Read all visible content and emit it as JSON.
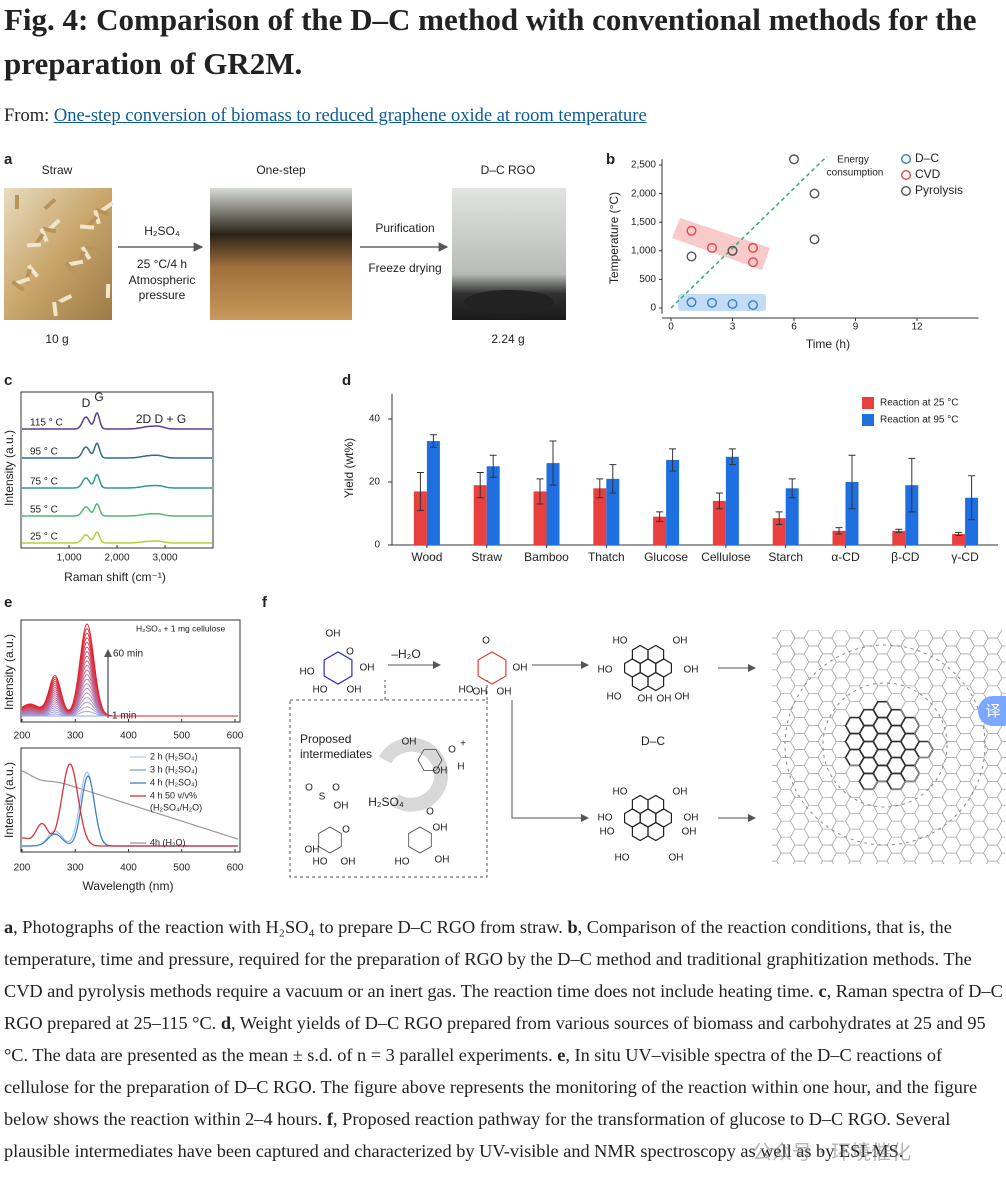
{
  "header": {
    "title": "Fig. 4: Comparison of the D–C method with conventional methods for the preparation of GR2M.",
    "from_label": "From:",
    "from_link": "One-step conversion of biomass to reduced graphene oxide at room temperature"
  },
  "figure": {
    "panel_a": {
      "letter": "a",
      "photo_labels": [
        "Straw",
        "One-step",
        "D–C RGO"
      ],
      "masses": [
        "10 g",
        "2.24 g"
      ],
      "step1": [
        "H₂SO₄",
        "25 °C/4 h",
        "Atmospheric",
        "pressure"
      ],
      "step2": [
        "Purification",
        "Freeze drying"
      ]
    },
    "panel_b": {
      "letter": "b",
      "type": "scatter",
      "xlabel": "Time (h)",
      "ylabel": "Temperature (°C)",
      "xlim": [
        0,
        15
      ],
      "ylim": [
        -100,
        2600
      ],
      "xticks": [
        0,
        3,
        6,
        9,
        12
      ],
      "yticks": [
        0,
        500,
        {
          "value": 1000,
          "label": "1,000"
        },
        {
          "value": 1500,
          "label": "1,500"
        },
        {
          "value": 2000,
          "label": "2,000"
        },
        {
          "value": 2500,
          "label": "2,500"
        }
      ],
      "annotation": [
        "Energy",
        "consumption"
      ],
      "legend_position": "upper right",
      "series": [
        {
          "name": "D–C",
          "color": "#3a7dc9",
          "x": [
            1,
            2,
            3,
            4
          ],
          "values": [
            100,
            90,
            70,
            50
          ]
        },
        {
          "name": "CVD",
          "color": "#e0474c",
          "x": [
            1,
            2,
            3,
            4,
            4
          ],
          "values": [
            1350,
            1050,
            1000,
            1050,
            800
          ]
        },
        {
          "name": "Pyrolysis",
          "color": "#555555",
          "x": [
            1,
            3,
            6,
            7,
            7
          ],
          "values": [
            900,
            1000,
            2600,
            2000,
            1200
          ]
        }
      ]
    },
    "panel_c": {
      "letter": "c",
      "xlabel": "Raman shift (cm⁻¹)",
      "ylabel": "Intensity (a.u.)",
      "xlim": [
        0,
        4000
      ],
      "xticks": [
        {
          "value": 1000,
          "label": "1,000"
        },
        {
          "value": 2000,
          "label": "2,000"
        },
        {
          "value": 3000,
          "label": "3,000"
        }
      ],
      "peaks": [
        "D",
        "G",
        "2D D + G"
      ],
      "temperatures": [
        "115 ° C",
        "95 ° C",
        "75 ° C",
        "55 ° C",
        "25 ° C"
      ]
    },
    "panel_d": {
      "letter": "d",
      "type": "bar",
      "ylabel": "Yield (wt%)",
      "ylim": [
        0,
        48
      ],
      "yticks": [
        0,
        20,
        40
      ],
      "legend_position": "upper right",
      "categories": [
        "Wood",
        "Straw",
        "Bamboo",
        "Thatch",
        "Glucose",
        "Cellulose",
        "Starch",
        "α-CD",
        "β-CD",
        "γ-CD"
      ],
      "series": [
        {
          "name": "Reaction at 25 °C",
          "color": "#e8403f",
          "values": [
            17,
            19,
            17,
            18,
            9,
            14,
            8.5,
            4.5,
            4.5,
            3.5
          ],
          "errors": [
            6,
            4,
            4,
            3,
            1.5,
            2.5,
            2,
            1,
            0.5,
            0.5
          ]
        },
        {
          "name": "Reaction at 95 °C",
          "color": "#1f6fe0",
          "values": [
            33,
            25,
            26,
            21,
            27,
            28,
            18,
            20,
            19,
            15
          ],
          "errors": [
            2,
            3.5,
            7,
            4.5,
            3.5,
            2.5,
            3,
            8.5,
            8.5,
            7
          ]
        }
      ]
    },
    "panel_e": {
      "letter": "e",
      "ylabel": "Intensity (a.u.)",
      "xlabel": "Wavelength (nm)",
      "xlim": [
        200,
        600
      ],
      "xticks_top": [
        200,
        300,
        400,
        500,
        600
      ],
      "xticks_bottom": [
        200,
        300,
        400,
        500,
        600
      ],
      "top_notes": [
        "H₂SO₄ + 1 mg cellulose",
        "60 min",
        "1 min"
      ],
      "bottom_legend": [
        "2 h (H₂SO₄)",
        "3 h (H₂SO₄)",
        "4 h (H₂SO₄)",
        "4 h  50 v/v%",
        "(H₂SO₄/H₂O)",
        "4h (H₂O)"
      ]
    },
    "panel_f": {
      "letter": "f",
      "minus_water": "–H₂O",
      "intermediates_title": [
        "Proposed",
        "intermediates"
      ],
      "catalyst": "H₂SO₄",
      "product_label": "D–C",
      "glucose_atoms": [
        "OH",
        "O",
        "OH",
        "HO",
        "HO",
        "OH"
      ],
      "keto_atoms": [
        "O",
        "OH",
        "HO",
        "OH",
        "OH"
      ],
      "pah_top_atoms": [
        "HO",
        "OH",
        "HO",
        "OH",
        "HO",
        "OH",
        "OH",
        "OH"
      ],
      "pah_bottom_atoms": [
        "HO",
        "OH",
        "HO",
        "OH",
        "HO",
        "OH",
        "HO",
        "OH"
      ],
      "intermediate_top_atoms": [
        "OH",
        "O",
        "OH",
        "H",
        "+"
      ],
      "intermediate_left_atoms": [
        "O",
        "S",
        "O",
        "OH",
        "O",
        "OH",
        "HO",
        "OH"
      ],
      "intermediate_right_atoms": [
        "OH",
        "O",
        "HO",
        "OH"
      ]
    }
  },
  "caption": [
    {
      "letter": "a",
      "text": ", Photographs of the reaction with H₂SO₄ to prepare D–C RGO from straw. "
    },
    {
      "letter": "b",
      "text": ", Comparison of the reaction conditions, that is, the temperature, time and pressure, required for the preparation of RGO by the D–C method and traditional graphitization methods. The CVD and pyrolysis methods require a vacuum or an inert gas. The reaction time does not include heating time. "
    },
    {
      "letter": "c",
      "text": ", Raman spectra of D–C RGO prepared at 25–115 °C. "
    },
    {
      "letter": "d",
      "text": ", Weight yields of D–C RGO prepared from various sources of biomass and carbohydrates at 25 and 95 °C. The data are presented as the mean ± s.d. of n = 3 parallel experiments. "
    },
    {
      "letter": "e",
      "text": ", In situ UV–visible spectra of the D–C reactions of cellulose for the preparation of D–C RGO. The figure above represents the monitoring of the reaction within one hour, and the figure below shows the reaction within 2–4 hours. "
    },
    {
      "letter": "f",
      "text": ", Proposed reaction pathway for the transformation of glucose to D–C RGO. Several plausible intermediates have been captured and characterized by UV-visible and NMR spectroscopy as well as by ESI-MS."
    }
  ],
  "watermark": "公众号 · 环境催化",
  "translate_icon": "译"
}
